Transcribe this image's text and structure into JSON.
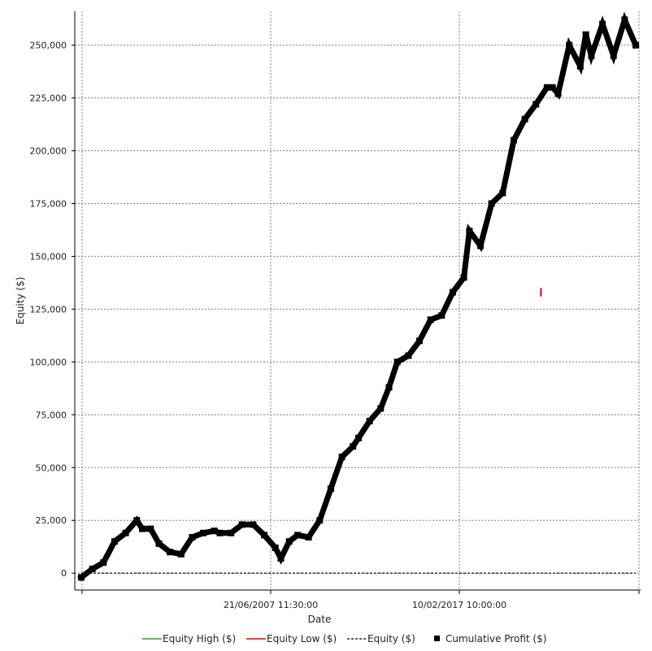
{
  "chart_data": {
    "type": "line",
    "xlabel": "Date",
    "ylabel": "Equity ($)",
    "x_tick_labels": [
      "21/06/2007 11:30:00",
      "10/02/2017 10:00:00"
    ],
    "y_ticks": [
      0,
      25000,
      50000,
      75000,
      100000,
      125000,
      150000,
      175000,
      200000,
      225000,
      250000
    ],
    "y_tick_labels": [
      "0",
      "25,000",
      "50,000",
      "75,000",
      "100,000",
      "125,000",
      "150,000",
      "175,000",
      "200,000",
      "225,000",
      "250,000"
    ],
    "ylim": [
      -8000,
      266000
    ],
    "grid": true,
    "legend_position": "bottom",
    "legend": [
      "Equity High ($)",
      "Equity Low ($)",
      "Equity ($)",
      "Cumulative Profit ($)"
    ],
    "colors": {
      "equity_high": "#2ca02c",
      "equity_low": "#e00000",
      "equity": "#000000",
      "cumulative_profit": "#000000",
      "grid": "#808080"
    },
    "series": [
      {
        "name": "Cumulative Profit ($)",
        "x": [
          0.0,
          0.02,
          0.04,
          0.06,
          0.08,
          0.1,
          0.11,
          0.125,
          0.14,
          0.16,
          0.18,
          0.2,
          0.22,
          0.24,
          0.25,
          0.27,
          0.29,
          0.31,
          0.33,
          0.35,
          0.36,
          0.375,
          0.39,
          0.41,
          0.43,
          0.45,
          0.47,
          0.49,
          0.5,
          0.52,
          0.54,
          0.555,
          0.57,
          0.59,
          0.61,
          0.63,
          0.65,
          0.67,
          0.69,
          0.7,
          0.72,
          0.74,
          0.76,
          0.78,
          0.8,
          0.82,
          0.84,
          0.85,
          0.86,
          0.88,
          0.9,
          0.91,
          0.92,
          0.94,
          0.96,
          0.98,
          1.0
        ],
        "values": [
          -2000,
          2000,
          5000,
          15000,
          19000,
          25000,
          21000,
          21000,
          14000,
          10000,
          9000,
          17000,
          19000,
          20000,
          19000,
          19000,
          23000,
          23000,
          18000,
          12000,
          7000,
          15000,
          18000,
          17000,
          25000,
          40000,
          55000,
          60000,
          64000,
          72000,
          78000,
          88000,
          100000,
          103000,
          110000,
          120000,
          122000,
          133000,
          140000,
          162000,
          155000,
          175000,
          180000,
          205000,
          215000,
          222000,
          230000,
          230000,
          227000,
          250000,
          240000,
          255000,
          245000,
          260000,
          245000,
          262000,
          250000
        ]
      },
      {
        "name": "Equity ($)",
        "x": [
          0.0,
          1.0
        ],
        "values": [
          0,
          0
        ]
      },
      {
        "name": "Equity Low ($)",
        "x": [
          0.829,
          0.829
        ],
        "values": [
          135000,
          131000
        ]
      }
    ]
  }
}
